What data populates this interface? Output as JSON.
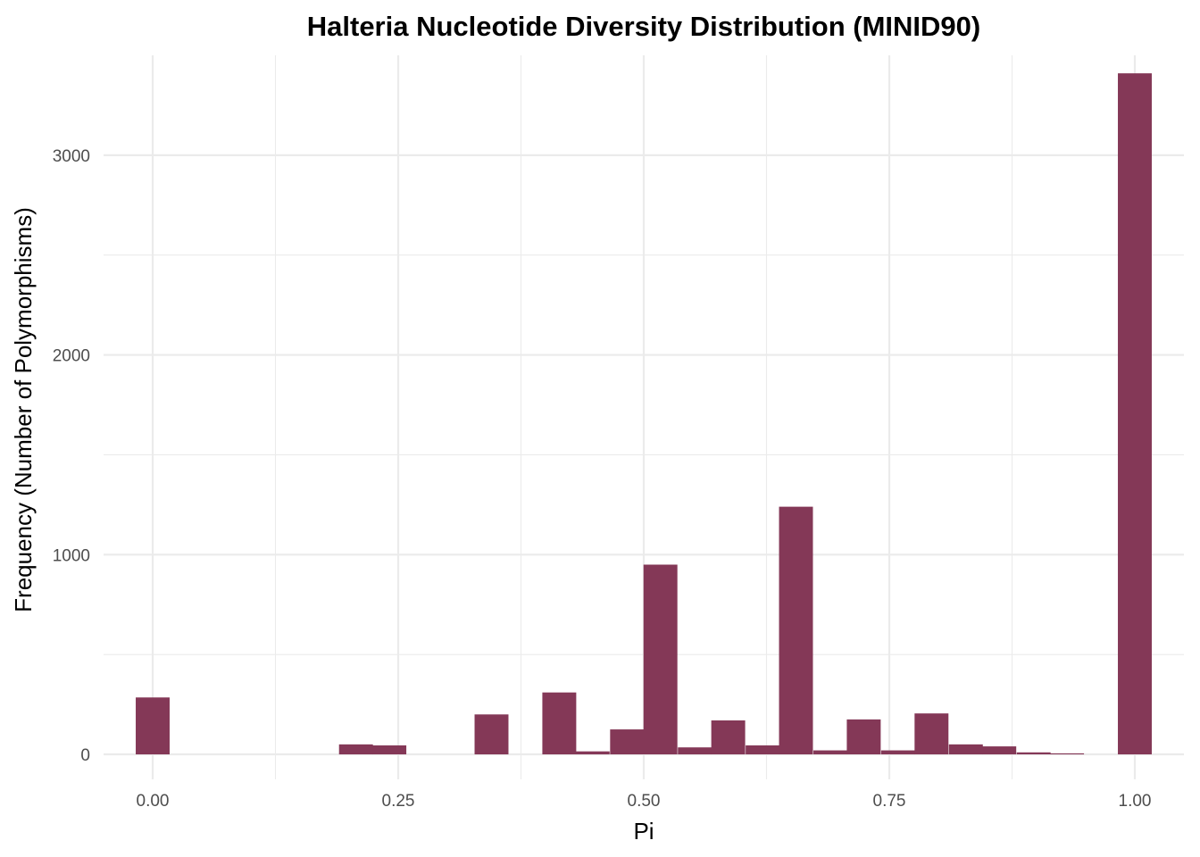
{
  "chart_data": {
    "type": "bar",
    "title": "Halteria Nucleotide Diversity Distribution (MINID90)",
    "xlabel": "Pi",
    "ylabel": "Frequency (Number of Polymorphisms)",
    "xlim": [
      -0.05,
      1.05
    ],
    "ylim": [
      -125,
      3500
    ],
    "x_ticks": [
      {
        "value": 0.0,
        "label": "0.00"
      },
      {
        "value": 0.25,
        "label": "0.25"
      },
      {
        "value": 0.5,
        "label": "0.50"
      },
      {
        "value": 0.75,
        "label": "0.75"
      },
      {
        "value": 1.0,
        "label": "1.00"
      }
    ],
    "y_ticks": [
      {
        "value": 0,
        "label": "0"
      },
      {
        "value": 1000,
        "label": "1000"
      },
      {
        "value": 2000,
        "label": "2000"
      },
      {
        "value": 3000,
        "label": "3000"
      }
    ],
    "bin_width": 0.0345,
    "bins": [
      {
        "x": 0.0,
        "count": 285
      },
      {
        "x": 0.207,
        "count": 50
      },
      {
        "x": 0.241,
        "count": 45
      },
      {
        "x": 0.345,
        "count": 200
      },
      {
        "x": 0.414,
        "count": 310
      },
      {
        "x": 0.448,
        "count": 15
      },
      {
        "x": 0.483,
        "count": 125
      },
      {
        "x": 0.517,
        "count": 950
      },
      {
        "x": 0.552,
        "count": 35
      },
      {
        "x": 0.586,
        "count": 170
      },
      {
        "x": 0.621,
        "count": 45
      },
      {
        "x": 0.655,
        "count": 1240
      },
      {
        "x": 0.69,
        "count": 20
      },
      {
        "x": 0.724,
        "count": 175
      },
      {
        "x": 0.759,
        "count": 20
      },
      {
        "x": 0.793,
        "count": 205
      },
      {
        "x": 0.828,
        "count": 50
      },
      {
        "x": 0.862,
        "count": 40
      },
      {
        "x": 0.897,
        "count": 10
      },
      {
        "x": 0.931,
        "count": 5
      },
      {
        "x": 1.0,
        "count": 3410
      }
    ],
    "bar_color": "#843857",
    "grid": true,
    "legend": "none"
  }
}
